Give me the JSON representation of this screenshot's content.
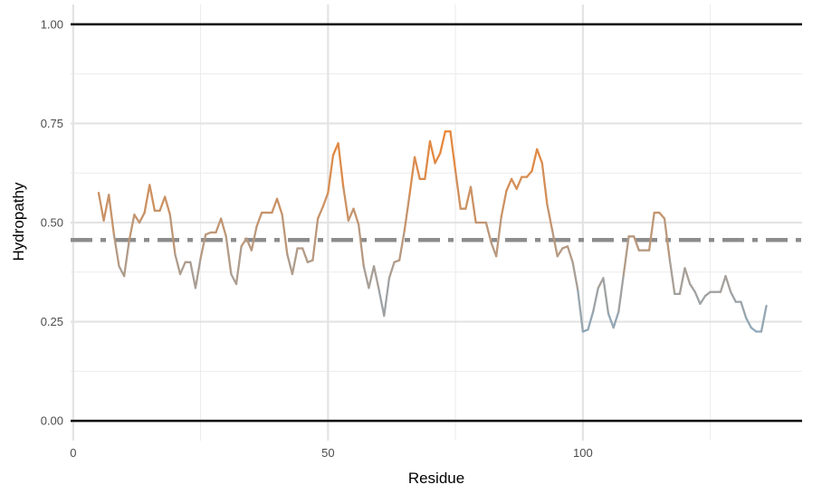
{
  "chart_data": {
    "type": "line",
    "title": "",
    "xlabel": "Residue",
    "ylabel": "Hydropathy",
    "xlim": [
      -0.5,
      143
    ],
    "ylim": [
      -0.05,
      1.05
    ],
    "x_ticks": [
      0,
      50,
      100
    ],
    "x_tick_labels": [
      "0",
      "50",
      "100"
    ],
    "y_ticks": [
      0.0,
      0.25,
      0.5,
      0.75,
      1.0
    ],
    "y_tick_labels": [
      "0.00",
      "0.25",
      "0.50",
      "0.75",
      "1.00"
    ],
    "grid": true,
    "reference_lines": [
      {
        "y": 0.0,
        "style": "solid",
        "color": "#000000"
      },
      {
        "y": 1.0,
        "style": "solid",
        "color": "#000000"
      },
      {
        "y": 0.456,
        "style": "dash-dot",
        "color": "#8c8c8c"
      }
    ],
    "color_scale": {
      "low": "#8fa8ba",
      "high": "#ed8533",
      "low_value": 0.23,
      "high_value": 0.73
    },
    "x": [
      5,
      6,
      7,
      8,
      9,
      10,
      11,
      12,
      13,
      14,
      15,
      16,
      17,
      18,
      19,
      20,
      21,
      22,
      23,
      24,
      25,
      26,
      27,
      28,
      29,
      30,
      31,
      32,
      33,
      34,
      35,
      36,
      37,
      38,
      39,
      40,
      41,
      42,
      43,
      44,
      45,
      46,
      47,
      48,
      49,
      50,
      51,
      52,
      53,
      54,
      55,
      56,
      57,
      58,
      59,
      60,
      61,
      62,
      63,
      64,
      65,
      66,
      67,
      68,
      69,
      70,
      71,
      72,
      73,
      74,
      75,
      76,
      77,
      78,
      79,
      80,
      81,
      82,
      83,
      84,
      85,
      86,
      87,
      88,
      89,
      90,
      91,
      92,
      93,
      94,
      95,
      96,
      97,
      98,
      99,
      100,
      101,
      102,
      103,
      104,
      105,
      106,
      107,
      108,
      109,
      110,
      111,
      112,
      113,
      114,
      115,
      116,
      117,
      118,
      119,
      120,
      121,
      122,
      123,
      124,
      125,
      126,
      127,
      128,
      129,
      130,
      131,
      132,
      133,
      134,
      135,
      136
    ],
    "y": [
      0.575,
      0.505,
      0.57,
      0.47,
      0.39,
      0.365,
      0.455,
      0.52,
      0.5,
      0.525,
      0.595,
      0.53,
      0.53,
      0.565,
      0.52,
      0.42,
      0.37,
      0.4,
      0.4,
      0.335,
      0.41,
      0.47,
      0.475,
      0.475,
      0.51,
      0.465,
      0.37,
      0.345,
      0.44,
      0.46,
      0.43,
      0.49,
      0.525,
      0.525,
      0.525,
      0.56,
      0.52,
      0.42,
      0.37,
      0.435,
      0.435,
      0.4,
      0.405,
      0.51,
      0.54,
      0.575,
      0.67,
      0.7,
      0.59,
      0.505,
      0.535,
      0.495,
      0.39,
      0.335,
      0.39,
      0.33,
      0.265,
      0.36,
      0.4,
      0.405,
      0.48,
      0.57,
      0.665,
      0.61,
      0.61,
      0.705,
      0.65,
      0.675,
      0.73,
      0.73,
      0.63,
      0.535,
      0.535,
      0.59,
      0.5,
      0.5,
      0.5,
      0.45,
      0.415,
      0.515,
      0.58,
      0.61,
      0.585,
      0.615,
      0.615,
      0.63,
      0.685,
      0.65,
      0.545,
      0.48,
      0.415,
      0.435,
      0.44,
      0.4,
      0.33,
      0.225,
      0.23,
      0.275,
      0.335,
      0.36,
      0.27,
      0.235,
      0.275,
      0.37,
      0.465,
      0.465,
      0.43,
      0.43,
      0.43,
      0.525,
      0.525,
      0.51,
      0.41,
      0.32,
      0.32,
      0.385,
      0.345,
      0.325,
      0.295,
      0.315,
      0.325,
      0.325,
      0.325,
      0.365,
      0.325,
      0.3,
      0.3,
      0.26,
      0.235,
      0.225,
      0.225,
      0.29
    ]
  }
}
